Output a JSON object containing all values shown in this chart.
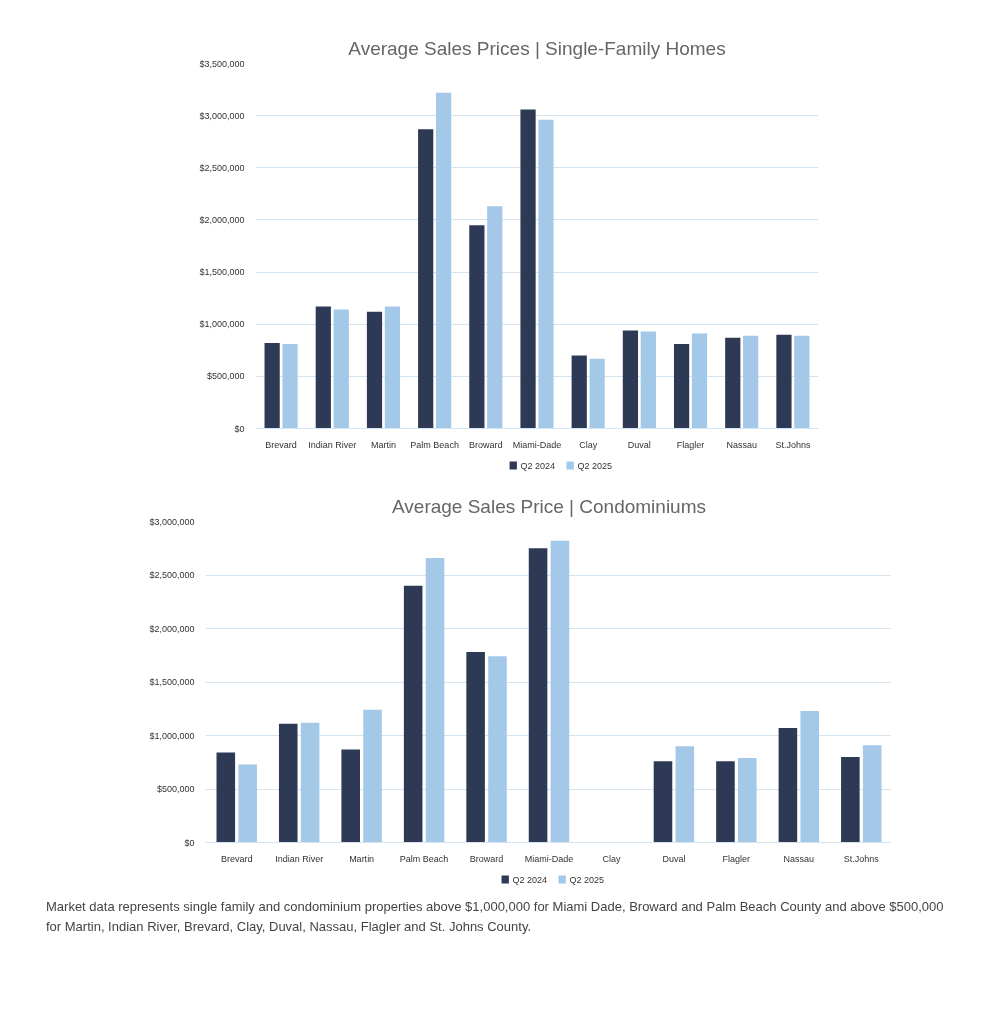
{
  "chart_data": [
    {
      "type": "bar",
      "title": "Average Sales Prices | Single-Family Homes",
      "categories": [
        "Brevard",
        "Indian River",
        "Martin",
        "Palm Beach",
        "Broward",
        "Miami-Dade",
        "Clay",
        "Duval",
        "Flagler",
        "Nassau",
        "St.Johns"
      ],
      "series": [
        {
          "name": "Q2 2024",
          "color": "#2e3a55",
          "values": [
            820000,
            1170000,
            1120000,
            2870000,
            1950000,
            3060000,
            700000,
            940000,
            810000,
            870000,
            900000
          ]
        },
        {
          "name": "Q2 2025",
          "color": "#a3c8e8",
          "values": [
            810000,
            1140000,
            1170000,
            3220000,
            2130000,
            2960000,
            670000,
            930000,
            910000,
            890000,
            890000
          ]
        }
      ],
      "ylim": [
        0,
        3500000
      ],
      "yticks": [
        {
          "value": 0,
          "label": "$0"
        },
        {
          "value": 500000,
          "label": "$500,000"
        },
        {
          "value": 1000000,
          "label": "$1,000,000"
        },
        {
          "value": 1500000,
          "label": "$1,500,000"
        },
        {
          "value": 2000000,
          "label": "$2,000,000"
        },
        {
          "value": 2500000,
          "label": "$2,500,000"
        },
        {
          "value": 3000000,
          "label": "$3,000,000"
        },
        {
          "value": 3500000,
          "label": "$3,500,000"
        }
      ],
      "grid": "y",
      "legend": "bottom"
    },
    {
      "type": "bar",
      "title": "Average Sales Price | Condominiums",
      "categories": [
        "Brevard",
        "Indian River",
        "Martin",
        "Palm Beach",
        "Broward",
        "Miami-Dade",
        "Clay",
        "Duval",
        "Flagler",
        "Nassau",
        "St.Johns"
      ],
      "series": [
        {
          "name": "Q2 2024",
          "color": "#2e3a55",
          "values": [
            840000,
            1110000,
            870000,
            2400000,
            1780000,
            2750000,
            null,
            760000,
            760000,
            1070000,
            800000
          ]
        },
        {
          "name": "Q2 2025",
          "color": "#a3c8e8",
          "values": [
            730000,
            1120000,
            1240000,
            2660000,
            1740000,
            2820000,
            null,
            900000,
            790000,
            1230000,
            910000
          ]
        }
      ],
      "ylim": [
        0,
        3000000
      ],
      "yticks": [
        {
          "value": 0,
          "label": "$0"
        },
        {
          "value": 500000,
          "label": "$500,000"
        },
        {
          "value": 1000000,
          "label": "$1,000,000"
        },
        {
          "value": 1500000,
          "label": "$1,500,000"
        },
        {
          "value": 2000000,
          "label": "$2,000,000"
        },
        {
          "value": 2500000,
          "label": "$2,500,000"
        },
        {
          "value": 3000000,
          "label": "$3,000,000"
        }
      ],
      "grid": "y",
      "legend": "bottom",
      "annotations": [
        "Market data represents single family and condominium properties above $1,000,000 for Miami Dade, Broward and Palm Beach County and above $500,000 for Martin, Indian River, Brevard, Clay, Duval, Nassau, Flagler and St. Johns County."
      ]
    }
  ]
}
